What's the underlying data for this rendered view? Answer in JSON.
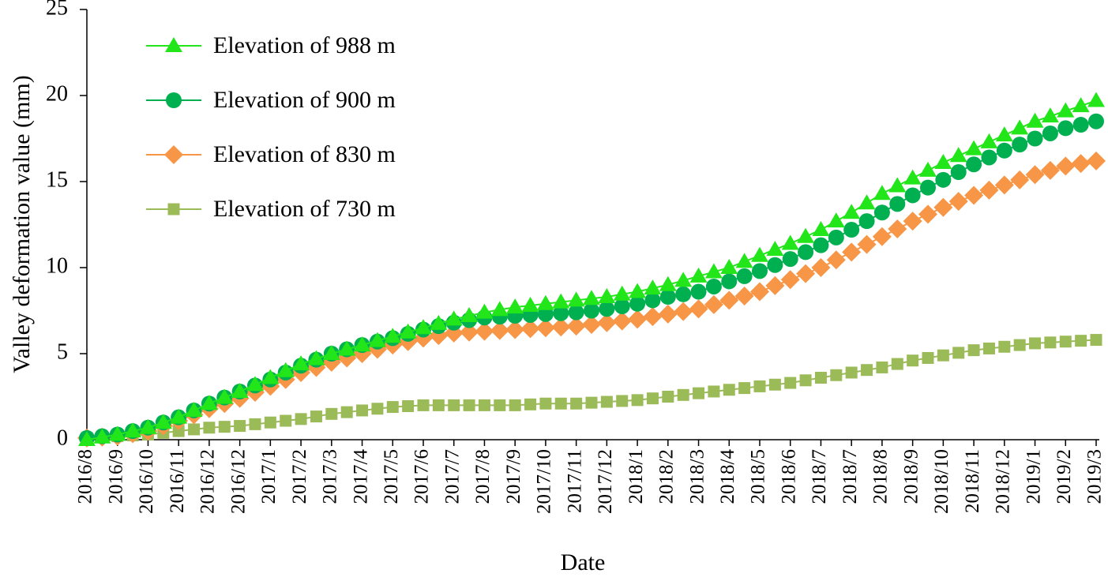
{
  "chart_data": {
    "type": "line",
    "xlabel": "Date",
    "ylabel": "Valley deformation value (mm)",
    "categories": [
      "2016/8",
      null,
      "2016/9",
      null,
      "2016/10",
      null,
      "2016/11",
      null,
      "2016/12",
      null,
      "2016/12",
      null,
      "2017/1",
      null,
      "2017/2",
      null,
      "2017/3",
      null,
      "2017/4",
      null,
      "2017/5",
      null,
      "2017/6",
      null,
      "2017/7",
      null,
      "2017/8",
      null,
      "2017/9",
      null,
      "2017/10",
      null,
      "2017/11",
      null,
      "2017/12",
      null,
      "2018/1",
      null,
      "2018/2",
      null,
      "2018/3",
      null,
      "2018/4",
      null,
      "2018/5",
      null,
      "2018/6",
      null,
      "2018/7",
      null,
      "2018/7",
      null,
      "2018/8",
      null,
      "2018/9",
      null,
      "2018/10",
      null,
      "2018/11",
      null,
      "2018/12",
      null,
      "2019/1",
      null,
      "2019/2",
      null,
      "2019/3"
    ],
    "series": [
      {
        "name": "Elevation of 988 m",
        "color": "#22e61a",
        "marker": "triangle",
        "values": [
          0,
          0.15,
          0.3,
          0.5,
          0.7,
          1.0,
          1.3,
          1.7,
          2.1,
          2.45,
          2.8,
          3.2,
          3.6,
          4.0,
          4.4,
          4.7,
          5.0,
          5.25,
          5.5,
          5.75,
          6.0,
          6.25,
          6.5,
          6.75,
          7.0,
          7.2,
          7.4,
          7.55,
          7.7,
          7.8,
          7.9,
          8.0,
          8.1,
          8.2,
          8.3,
          8.45,
          8.6,
          8.8,
          9.0,
          9.25,
          9.5,
          9.75,
          10.0,
          10.35,
          10.7,
          11.05,
          11.4,
          11.8,
          12.2,
          12.7,
          13.2,
          13.75,
          14.3,
          14.75,
          15.2,
          15.65,
          16.1,
          16.5,
          16.9,
          17.3,
          17.7,
          18.1,
          18.5,
          18.8,
          19.1,
          19.4,
          19.7
        ]
      },
      {
        "name": "Elevation of 900 m",
        "color": "#00b050",
        "marker": "circle",
        "values": [
          0.1,
          0.2,
          0.3,
          0.5,
          0.7,
          1.0,
          1.3,
          1.7,
          2.1,
          2.45,
          2.8,
          3.15,
          3.5,
          3.9,
          4.3,
          4.65,
          5.0,
          5.25,
          5.5,
          5.7,
          5.9,
          6.15,
          6.4,
          6.6,
          6.8,
          6.95,
          7.1,
          7.15,
          7.2,
          7.25,
          7.3,
          7.35,
          7.4,
          7.5,
          7.6,
          7.75,
          7.9,
          8.1,
          8.3,
          8.45,
          8.6,
          8.9,
          9.2,
          9.5,
          9.8,
          10.15,
          10.5,
          10.9,
          11.3,
          11.75,
          12.2,
          12.7,
          13.2,
          13.7,
          14.2,
          14.65,
          15.1,
          15.55,
          16.0,
          16.4,
          16.8,
          17.15,
          17.5,
          17.8,
          18.1,
          18.3,
          18.5
        ]
      },
      {
        "name": "Elevation of 830 m",
        "color": "#f79646",
        "marker": "diamond",
        "values": [
          0.1,
          0.15,
          0.2,
          0.35,
          0.5,
          0.8,
          1.1,
          1.45,
          1.8,
          2.1,
          2.4,
          2.75,
          3.1,
          3.5,
          3.9,
          4.2,
          4.5,
          4.75,
          5.0,
          5.25,
          5.5,
          5.7,
          5.9,
          6.05,
          6.2,
          6.25,
          6.3,
          6.35,
          6.4,
          6.45,
          6.5,
          6.55,
          6.6,
          6.7,
          6.8,
          6.9,
          7.0,
          7.15,
          7.3,
          7.45,
          7.6,
          7.85,
          8.1,
          8.35,
          8.6,
          8.95,
          9.3,
          9.65,
          10.0,
          10.45,
          10.9,
          11.35,
          11.8,
          12.25,
          12.7,
          13.1,
          13.5,
          13.85,
          14.2,
          14.5,
          14.8,
          15.1,
          15.4,
          15.65,
          15.9,
          16.05,
          16.2
        ]
      },
      {
        "name": "Elevation of 730 m",
        "color": "#9bbb59",
        "marker": "square",
        "values": [
          0.1,
          0.15,
          0.2,
          0.25,
          0.3,
          0.4,
          0.5,
          0.6,
          0.7,
          0.75,
          0.8,
          0.9,
          1.0,
          1.1,
          1.2,
          1.35,
          1.5,
          1.6,
          1.7,
          1.8,
          1.9,
          1.95,
          2.0,
          2.0,
          2.0,
          2.0,
          2.0,
          2.0,
          2.0,
          2.05,
          2.1,
          2.1,
          2.1,
          2.15,
          2.2,
          2.25,
          2.3,
          2.4,
          2.5,
          2.6,
          2.7,
          2.8,
          2.9,
          3.0,
          3.1,
          3.2,
          3.3,
          3.45,
          3.6,
          3.75,
          3.9,
          4.05,
          4.2,
          4.4,
          4.6,
          4.75,
          4.9,
          5.05,
          5.2,
          5.3,
          5.4,
          5.5,
          5.6,
          5.65,
          5.7,
          5.75,
          5.8
        ]
      }
    ],
    "ylim": [
      0,
      25
    ],
    "yticks": [
      0,
      5,
      10,
      15,
      20,
      25
    ],
    "grid": false,
    "legend": "upper left"
  }
}
